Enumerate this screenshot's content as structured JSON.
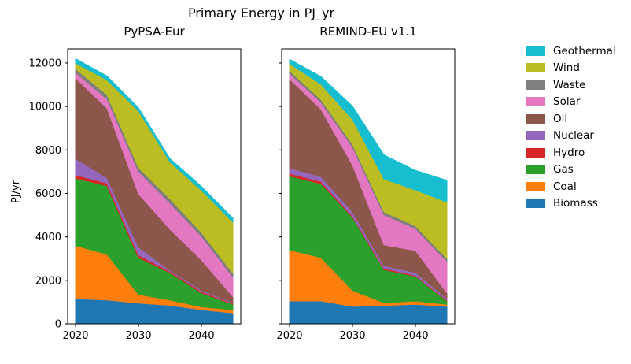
{
  "figure": {
    "title": "Primary Energy in PJ_yr",
    "background": "#ffffff"
  },
  "axes": {
    "ylabel": "PJ/yr",
    "ytick_labels": [
      "0",
      "2000",
      "4000",
      "6000",
      "8000",
      "10000",
      "12000"
    ],
    "yticks": [
      0,
      2000,
      4000,
      6000,
      8000,
      10000,
      12000
    ],
    "xtick_labels": [
      "2020",
      "2030",
      "2040"
    ],
    "xticks": [
      2020,
      2030,
      2040
    ],
    "xlim": [
      2018.75,
      2046.25
    ],
    "ylim": [
      0,
      12650
    ]
  },
  "legend": {
    "position": "right",
    "entries": [
      {
        "label": "Geothermal",
        "color": "#17becf"
      },
      {
        "label": "Wind",
        "color": "#bcbd22"
      },
      {
        "label": "Waste",
        "color": "#7f7f7f"
      },
      {
        "label": "Solar",
        "color": "#e377c2"
      },
      {
        "label": "Oil",
        "color": "#8c564b"
      },
      {
        "label": "Nuclear",
        "color": "#9467bd"
      },
      {
        "label": "Hydro",
        "color": "#d62728"
      },
      {
        "label": "Gas",
        "color": "#2ca02c"
      },
      {
        "label": "Coal",
        "color": "#ff7f0e"
      },
      {
        "label": "Biomass",
        "color": "#1f77b4"
      }
    ]
  },
  "chart_data": [
    {
      "type": "area",
      "stacked": true,
      "title": "PyPSA-Eur",
      "x": [
        2020,
        2025,
        2030,
        2035,
        2040,
        2045
      ],
      "unit": "PJ/yr",
      "series": [
        {
          "name": "Biomass",
          "color": "#1f77b4",
          "values": [
            1150,
            1100,
            950,
            850,
            650,
            500
          ]
        },
        {
          "name": "Coal",
          "color": "#ff7f0e",
          "values": [
            2450,
            2100,
            400,
            250,
            130,
            150
          ]
        },
        {
          "name": "Gas",
          "color": "#2ca02c",
          "values": [
            3100,
            3150,
            1700,
            1250,
            640,
            250
          ]
        },
        {
          "name": "Hydro",
          "color": "#d62728",
          "values": [
            150,
            120,
            120,
            60,
            60,
            40
          ]
        },
        {
          "name": "Nuclear",
          "color": "#9467bd",
          "values": [
            750,
            250,
            360,
            60,
            60,
            30
          ]
        },
        {
          "name": "Oil",
          "color": "#8c564b",
          "values": [
            3700,
            3200,
            2450,
            1880,
            1400,
            280
          ]
        },
        {
          "name": "Solar",
          "color": "#e377c2",
          "values": [
            250,
            420,
            1030,
            1200,
            1090,
            900
          ]
        },
        {
          "name": "Waste",
          "color": "#7f7f7f",
          "values": [
            180,
            200,
            180,
            200,
            180,
            180
          ]
        },
        {
          "name": "Wind",
          "color": "#bcbd22",
          "values": [
            270,
            680,
            2600,
            1700,
            1930,
            2350
          ]
        },
        {
          "name": "Geothermal",
          "color": "#17becf",
          "values": [
            200,
            180,
            150,
            150,
            180,
            180
          ]
        }
      ],
      "totals": [
        12200,
        11400,
        9940,
        7600,
        6320,
        4860
      ]
    },
    {
      "type": "area",
      "stacked": true,
      "title": "REMIND-EU v1.1",
      "x": [
        2020,
        2025,
        2030,
        2035,
        2040,
        2045
      ],
      "unit": "PJ/yr",
      "series": [
        {
          "name": "Biomass",
          "color": "#1f77b4",
          "values": [
            1050,
            1050,
            800,
            840,
            900,
            800
          ]
        },
        {
          "name": "Coal",
          "color": "#ff7f0e",
          "values": [
            2350,
            2000,
            740,
            130,
            150,
            100
          ]
        },
        {
          "name": "Gas",
          "color": "#2ca02c",
          "values": [
            3400,
            3400,
            3360,
            1520,
            1140,
            150
          ]
        },
        {
          "name": "Hydro",
          "color": "#d62728",
          "values": [
            120,
            100,
            60,
            60,
            40,
            40
          ]
        },
        {
          "name": "Nuclear",
          "color": "#9467bd",
          "values": [
            250,
            220,
            190,
            130,
            130,
            80
          ]
        },
        {
          "name": "Oil",
          "color": "#8c564b",
          "values": [
            4100,
            3100,
            2150,
            950,
            1010,
            250
          ]
        },
        {
          "name": "Solar",
          "color": "#e377c2",
          "values": [
            250,
            320,
            830,
            1390,
            1010,
            1450
          ]
        },
        {
          "name": "Waste",
          "color": "#7f7f7f",
          "values": [
            130,
            130,
            130,
            130,
            130,
            130
          ]
        },
        {
          "name": "Wind",
          "color": "#bcbd22",
          "values": [
            320,
            700,
            1150,
            1520,
            1650,
            2600
          ]
        },
        {
          "name": "Geothermal",
          "color": "#17becf",
          "values": [
            200,
            350,
            600,
            1100,
            900,
            1000
          ]
        }
      ],
      "totals": [
        12170,
        11370,
        10010,
        7770,
        7060,
        6600
      ]
    }
  ]
}
